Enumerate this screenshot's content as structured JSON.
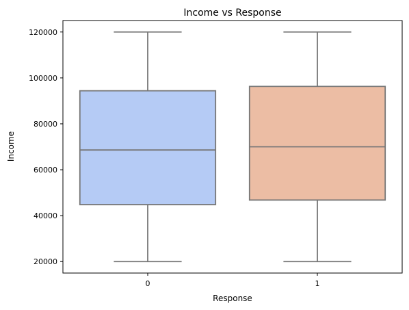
{
  "chart_data": {
    "type": "box",
    "title": "Income vs Response",
    "xlabel": "Response",
    "ylabel": "Income",
    "categories": [
      "0",
      "1"
    ],
    "ylim": [
      15000,
      125000
    ],
    "yticks": [
      20000,
      40000,
      60000,
      80000,
      100000,
      120000
    ],
    "grid": false,
    "boxes": [
      {
        "category": "0",
        "min": 20000,
        "q1": 44800,
        "median": 68600,
        "q3": 94400,
        "max": 120000,
        "color": "#b5cbf5"
      },
      {
        "category": "1",
        "min": 20000,
        "q1": 46800,
        "median": 70000,
        "q3": 96300,
        "max": 120000,
        "color": "#ecbda4"
      }
    ]
  }
}
